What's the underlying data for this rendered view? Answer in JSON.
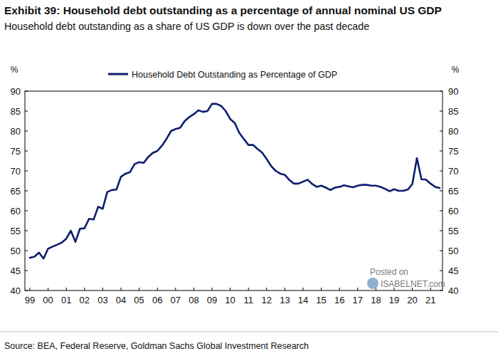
{
  "chart_data": {
    "type": "line",
    "title": "Exhibit 39: Household debt outstanding as a percentage of annual nominal US GDP",
    "subtitle": "Household debt outstanding as a share of US GDP is down over the past decade",
    "ylabel": "%",
    "source": "Source: BEA, Federal Reserve, Goldman Sachs Global Investment Research",
    "annotations": [
      "Posted on",
      "ISABELNET.com"
    ],
    "categories": [
      "99",
      null,
      null,
      null,
      "00",
      null,
      null,
      null,
      "01",
      null,
      null,
      null,
      "02",
      null,
      null,
      null,
      "03",
      null,
      null,
      null,
      "04",
      null,
      null,
      null,
      "05",
      null,
      null,
      null,
      "06",
      null,
      null,
      null,
      "07",
      null,
      null,
      null,
      "08",
      null,
      null,
      null,
      "09",
      null,
      null,
      null,
      "10",
      null,
      null,
      null,
      "11",
      null,
      null,
      null,
      "12",
      null,
      null,
      null,
      "13",
      null,
      null,
      null,
      "14",
      null,
      null,
      null,
      "15",
      null,
      null,
      null,
      "16",
      null,
      null,
      null,
      "17",
      null,
      null,
      null,
      "18",
      null,
      null,
      null,
      "19",
      null,
      null,
      null,
      "20",
      null,
      null,
      null,
      "21",
      null,
      null
    ],
    "series": [
      {
        "name": "Household Debt Outstanding as Percentage of GDP",
        "color": "#0c1e6e",
        "values": [
          48.2,
          48.5,
          49.5,
          48.0,
          50.5,
          51.0,
          51.5,
          52.0,
          53.0,
          55.0,
          52.2,
          55.5,
          55.6,
          58.0,
          57.8,
          61.0,
          60.5,
          64.7,
          65.2,
          65.3,
          68.5,
          69.3,
          69.7,
          71.7,
          72.2,
          72.0,
          73.5,
          74.5,
          75.0,
          76.3,
          78.0,
          80.0,
          80.5,
          80.8,
          82.5,
          83.5,
          84.2,
          85.2,
          84.8,
          85.0,
          86.8,
          86.8,
          86.3,
          85.0,
          83.0,
          82.0,
          79.5,
          78.0,
          76.5,
          76.5,
          75.5,
          74.6,
          73.0,
          71.2,
          70.0,
          69.3,
          69.0,
          67.7,
          66.8,
          66.8,
          67.3,
          67.8,
          66.7,
          66.0,
          66.3,
          65.8,
          65.2,
          65.8,
          66.0,
          66.4,
          66.1,
          65.9,
          66.3,
          66.5,
          66.5,
          66.3,
          66.3,
          66.0,
          65.5,
          64.9,
          65.4,
          65.0,
          65.0,
          65.3,
          66.7,
          73.2,
          67.9,
          67.8,
          66.8,
          66.0,
          65.7
        ]
      }
    ],
    "ylim": [
      40,
      90
    ],
    "yticks": [
      40,
      45,
      50,
      55,
      60,
      65,
      70,
      75,
      80,
      85,
      90
    ],
    "grid": false,
    "legend": "top"
  }
}
